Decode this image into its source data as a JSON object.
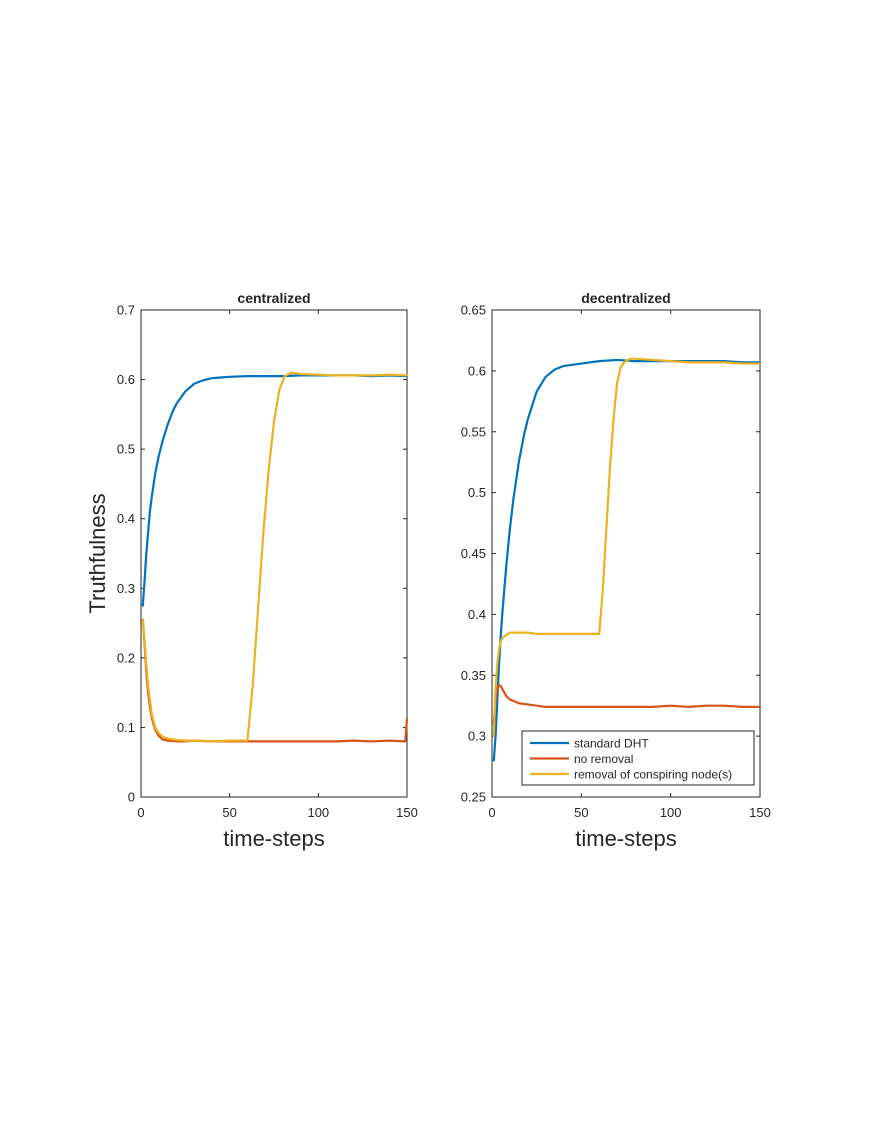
{
  "chart_data": [
    {
      "type": "line",
      "title": "centralized",
      "xlabel": "time-steps",
      "ylabel": "Truthfulness",
      "xlim": [
        0,
        150
      ],
      "ylim": [
        0,
        0.7
      ],
      "xticks": [
        "0",
        "50",
        "100",
        "150"
      ],
      "yticks": [
        "0",
        "0.1",
        "0.2",
        "0.3",
        "0.4",
        "0.5",
        "0.6",
        "0.7"
      ],
      "grid": false,
      "series": [
        {
          "name": "standard DHT",
          "color": "#0072BD",
          "x": [
            1,
            2,
            3,
            4,
            5,
            6,
            8,
            10,
            12,
            15,
            18,
            20,
            25,
            30,
            35,
            40,
            45,
            50,
            60,
            70,
            80,
            90,
            100,
            110,
            120,
            130,
            140,
            150
          ],
          "y": [
            0.275,
            0.31,
            0.35,
            0.38,
            0.41,
            0.43,
            0.465,
            0.49,
            0.51,
            0.535,
            0.555,
            0.565,
            0.583,
            0.594,
            0.599,
            0.602,
            0.603,
            0.604,
            0.605,
            0.605,
            0.605,
            0.606,
            0.606,
            0.606,
            0.606,
            0.605,
            0.606,
            0.605
          ]
        },
        {
          "name": "no removal",
          "color": "#D95319",
          "x": [
            1,
            2,
            3,
            4,
            5,
            6,
            7,
            8,
            10,
            12,
            15,
            20,
            25,
            30,
            40,
            50,
            60,
            70,
            80,
            90,
            100,
            110,
            120,
            130,
            140,
            149,
            150
          ],
          "y": [
            0.255,
            0.22,
            0.18,
            0.15,
            0.13,
            0.115,
            0.105,
            0.097,
            0.088,
            0.083,
            0.081,
            0.08,
            0.08,
            0.081,
            0.08,
            0.08,
            0.08,
            0.08,
            0.08,
            0.08,
            0.08,
            0.08,
            0.081,
            0.08,
            0.081,
            0.08,
            0.112
          ]
        },
        {
          "name": "removal of conspiring node(s)",
          "color": "#EDB120",
          "x": [
            1,
            2,
            3,
            4,
            5,
            6,
            7,
            8,
            10,
            12,
            15,
            20,
            25,
            30,
            40,
            50,
            60,
            63,
            66,
            69,
            72,
            75,
            78,
            81,
            85,
            90,
            100,
            110,
            120,
            130,
            140,
            150
          ],
          "y": [
            0.255,
            0.225,
            0.19,
            0.16,
            0.14,
            0.12,
            0.11,
            0.1,
            0.092,
            0.087,
            0.084,
            0.082,
            0.081,
            0.081,
            0.08,
            0.081,
            0.081,
            0.16,
            0.27,
            0.38,
            0.47,
            0.54,
            0.585,
            0.605,
            0.61,
            0.608,
            0.607,
            0.606,
            0.606,
            0.606,
            0.607,
            0.606
          ]
        }
      ]
    },
    {
      "type": "line",
      "title": "decentralized",
      "xlabel": "time-steps",
      "ylabel": "",
      "xlim": [
        0,
        150
      ],
      "ylim": [
        0.25,
        0.65
      ],
      "xticks": [
        "0",
        "50",
        "100",
        "150"
      ],
      "yticks": [
        "0.25",
        "0.3",
        "0.35",
        "0.4",
        "0.45",
        "0.5",
        "0.55",
        "0.6",
        "0.65"
      ],
      "grid": false,
      "legend": {
        "placement": "bottom-right",
        "entries": [
          "standard DHT",
          "no removal",
          "removal of conspiring node(s)"
        ]
      },
      "series": [
        {
          "name": "standard DHT",
          "color": "#0072BD",
          "x": [
            1,
            2,
            3,
            4,
            5,
            6,
            8,
            10,
            12,
            15,
            18,
            20,
            25,
            30,
            35,
            40,
            45,
            50,
            60,
            70,
            80,
            90,
            100,
            110,
            120,
            130,
            140,
            150
          ],
          "y": [
            0.28,
            0.3,
            0.33,
            0.36,
            0.385,
            0.405,
            0.44,
            0.47,
            0.495,
            0.525,
            0.548,
            0.56,
            0.583,
            0.595,
            0.601,
            0.604,
            0.605,
            0.606,
            0.608,
            0.609,
            0.608,
            0.608,
            0.608,
            0.608,
            0.608,
            0.608,
            0.607,
            0.607
          ]
        },
        {
          "name": "no removal",
          "color": "#D95319",
          "x": [
            1,
            2,
            3,
            4,
            5,
            6,
            8,
            10,
            12,
            15,
            20,
            25,
            30,
            40,
            50,
            60,
            70,
            80,
            90,
            100,
            110,
            120,
            130,
            140,
            150
          ],
          "y": [
            0.31,
            0.33,
            0.34,
            0.342,
            0.341,
            0.338,
            0.333,
            0.33,
            0.329,
            0.327,
            0.326,
            0.325,
            0.324,
            0.324,
            0.324,
            0.324,
            0.324,
            0.324,
            0.324,
            0.325,
            0.324,
            0.325,
            0.325,
            0.324,
            0.324
          ]
        },
        {
          "name": "removal of conspiring node(s)",
          "color": "#EDB120",
          "x": [
            1,
            2,
            3,
            4,
            5,
            6,
            8,
            10,
            12,
            15,
            20,
            25,
            30,
            40,
            50,
            60,
            62,
            64,
            66,
            68,
            70,
            72,
            74,
            76,
            78,
            80,
            90,
            100,
            110,
            120,
            130,
            140,
            150
          ],
          "y": [
            0.3,
            0.34,
            0.36,
            0.372,
            0.378,
            0.381,
            0.383,
            0.385,
            0.385,
            0.385,
            0.385,
            0.384,
            0.384,
            0.384,
            0.384,
            0.384,
            0.42,
            0.47,
            0.52,
            0.56,
            0.59,
            0.603,
            0.607,
            0.609,
            0.61,
            0.61,
            0.609,
            0.608,
            0.607,
            0.607,
            0.607,
            0.606,
            0.606
          ]
        }
      ]
    }
  ]
}
